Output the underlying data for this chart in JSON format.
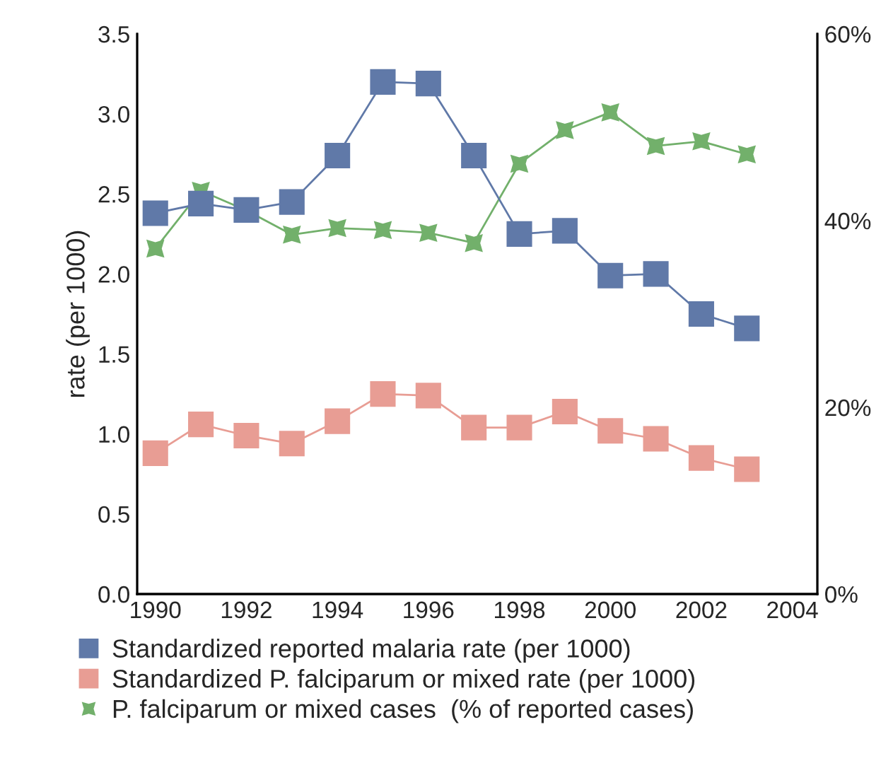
{
  "chart_data": {
    "type": "line",
    "ylabel": "rate (per 1000)",
    "x": [
      1990,
      1991,
      1992,
      1993,
      1994,
      1995,
      1996,
      1997,
      1998,
      1999,
      2000,
      2001,
      2002,
      2003
    ],
    "xlim": [
      1989.6,
      2004.55
    ],
    "xticks": [
      1990,
      1992,
      1994,
      1996,
      1998,
      2000,
      2002,
      2004
    ],
    "ylim": [
      0,
      3.5
    ],
    "yticks": [
      {
        "value": 0,
        "label": "0.0"
      },
      0.5,
      {
        "value": 1,
        "label": "1.0"
      },
      1.5,
      {
        "value": 2,
        "label": "2.0"
      },
      2.5,
      {
        "value": 3,
        "label": "3.0"
      },
      3.5
    ],
    "y2lim": [
      0,
      60
    ],
    "y2ticks": [
      {
        "value": 0,
        "label": "0%"
      },
      {
        "value": 20,
        "label": "20%"
      },
      {
        "value": 40,
        "label": "40%"
      },
      {
        "value": 60,
        "label": "60%"
      }
    ],
    "series": [
      {
        "name": "Standardized reported malaria rate (per 1000)",
        "color": "#6079a8",
        "marker": "square",
        "values": [
          2.38,
          2.44,
          2.4,
          2.45,
          2.74,
          3.2,
          3.19,
          2.74,
          2.25,
          2.27,
          1.99,
          2.0,
          1.75,
          1.66
        ]
      },
      {
        "name": "Standardized P. falciparum or mixed rate (per 1000)",
        "color": "#e89d94",
        "marker": "square",
        "values": [
          0.88,
          1.06,
          0.99,
          0.94,
          1.08,
          1.25,
          1.24,
          1.04,
          1.04,
          1.14,
          1.02,
          0.97,
          0.85,
          0.78
        ]
      },
      {
        "name": "P. falciparum or mixed cases  (% of reported cases)",
        "color": "#72b06b",
        "marker": "star",
        "axis": "y2",
        "values": [
          37.0,
          43.2,
          41.1,
          38.5,
          39.2,
          39.0,
          38.7,
          37.6,
          46.1,
          49.7,
          51.6,
          48.0,
          48.5,
          47.1
        ]
      }
    ],
    "grid": false,
    "legend": "bottom",
    "line_style": "solid"
  }
}
